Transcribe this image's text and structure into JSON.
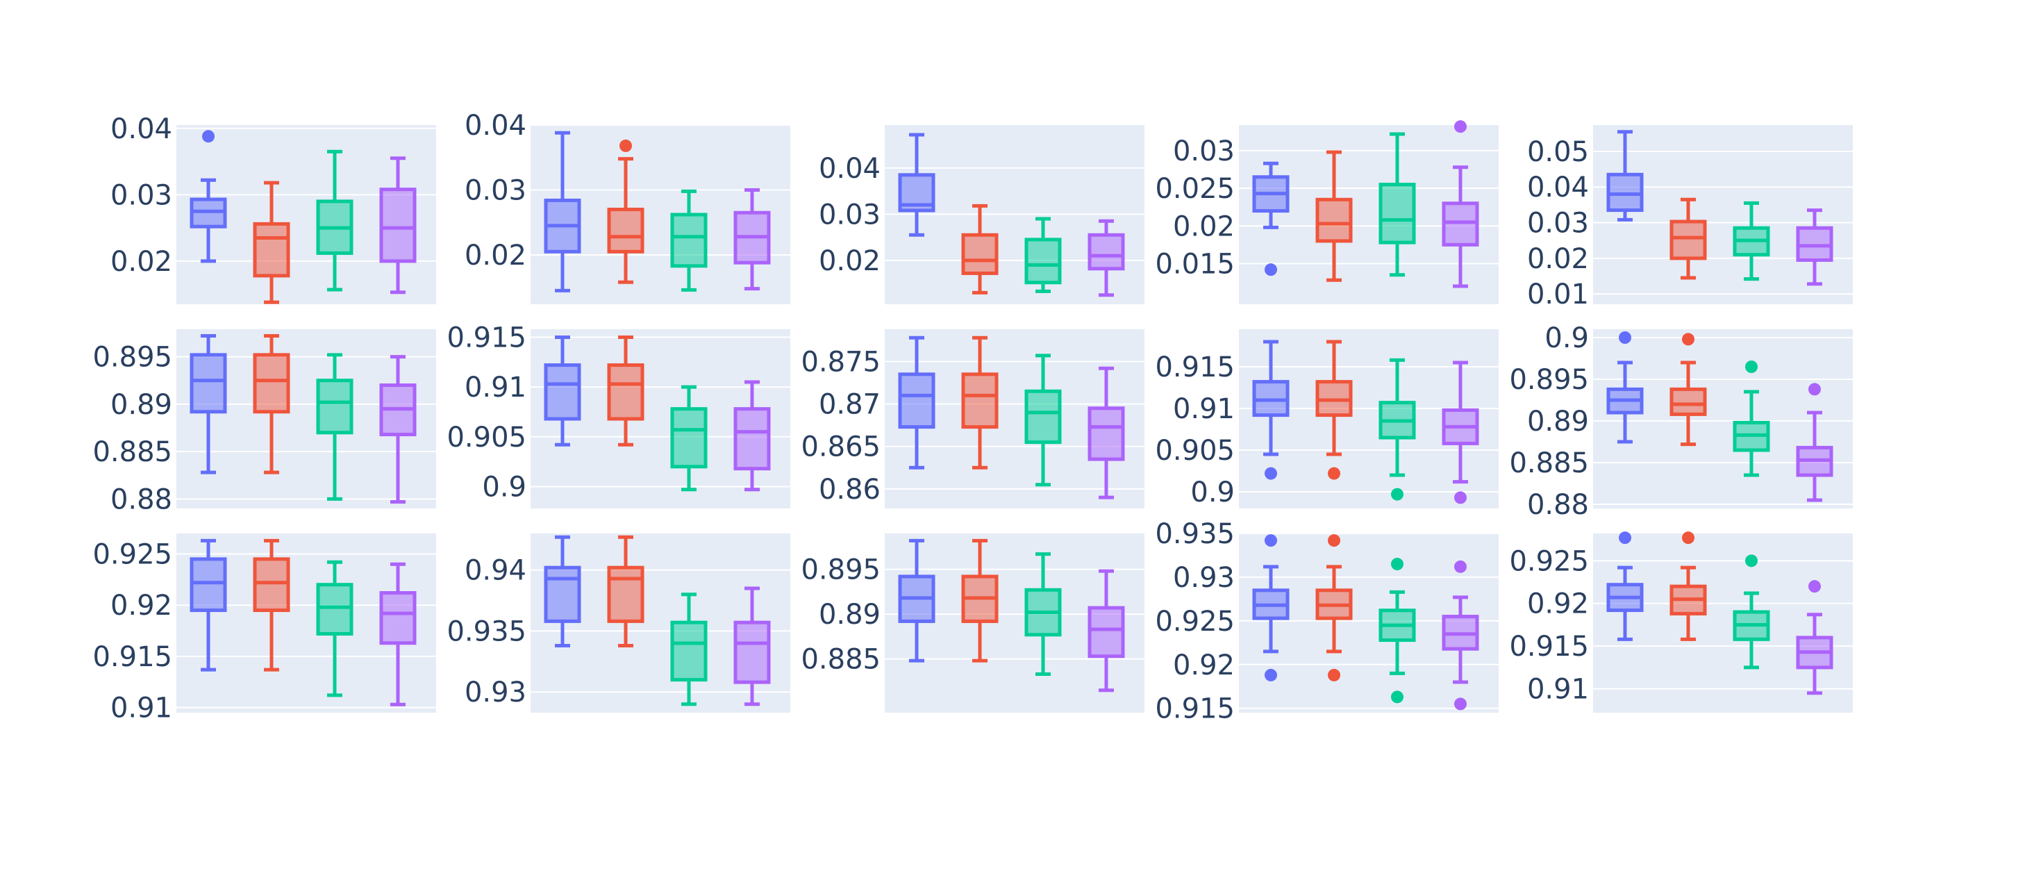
{
  "colors": {
    "plot_bg": "#e5ecf6",
    "grid": "#ffffff",
    "text": "#2a3f5f",
    "series": [
      "#636efa",
      "#ef553b",
      "#00cc96",
      "#ab63fa"
    ]
  },
  "chart_data": [
    {
      "type": "box",
      "row": 0,
      "col": 0,
      "ylim": [
        0.0135,
        0.0405
      ],
      "yticks": [
        {
          "v": 0.02,
          "label": "0.02"
        },
        {
          "v": 0.03,
          "label": "0.03"
        },
        {
          "v": 0.04,
          "label": "0.04"
        }
      ],
      "boxes": [
        {
          "q1": 0.0252,
          "median": 0.0275,
          "q3": 0.0293,
          "lowerfence": 0.02,
          "upperfence": 0.0322,
          "outliers": [
            0.0388
          ]
        },
        {
          "q1": 0.0178,
          "median": 0.0235,
          "q3": 0.0256,
          "lowerfence": 0.0138,
          "upperfence": 0.0318,
          "outliers": []
        },
        {
          "q1": 0.0212,
          "median": 0.025,
          "q3": 0.029,
          "lowerfence": 0.0157,
          "upperfence": 0.0365,
          "outliers": []
        },
        {
          "q1": 0.02,
          "median": 0.025,
          "q3": 0.0308,
          "lowerfence": 0.0153,
          "upperfence": 0.0355,
          "outliers": []
        }
      ]
    },
    {
      "type": "box",
      "row": 0,
      "col": 1,
      "ylim": [
        0.0124,
        0.04
      ],
      "yticks": [
        {
          "v": 0.02,
          "label": "0.02"
        },
        {
          "v": 0.03,
          "label": "0.03"
        },
        {
          "v": 0.04,
          "label": "0.04"
        }
      ],
      "boxes": [
        {
          "q1": 0.0205,
          "median": 0.0245,
          "q3": 0.0284,
          "lowerfence": 0.0145,
          "upperfence": 0.0388,
          "outliers": []
        },
        {
          "q1": 0.0205,
          "median": 0.0228,
          "q3": 0.027,
          "lowerfence": 0.0158,
          "upperfence": 0.0348,
          "outliers": [
            0.0368
          ]
        },
        {
          "q1": 0.0183,
          "median": 0.0228,
          "q3": 0.0262,
          "lowerfence": 0.0146,
          "upperfence": 0.0298,
          "outliers": []
        },
        {
          "q1": 0.0188,
          "median": 0.0228,
          "q3": 0.0265,
          "lowerfence": 0.0148,
          "upperfence": 0.03,
          "outliers": []
        }
      ]
    },
    {
      "type": "box",
      "row": 0,
      "col": 2,
      "ylim": [
        0.0105,
        0.0493
      ],
      "yticks": [
        {
          "v": 0.02,
          "label": "0.02"
        },
        {
          "v": 0.03,
          "label": "0.03"
        },
        {
          "v": 0.04,
          "label": "0.04"
        }
      ],
      "boxes": [
        {
          "q1": 0.0308,
          "median": 0.032,
          "q3": 0.0385,
          "lowerfence": 0.0255,
          "upperfence": 0.0472,
          "outliers": []
        },
        {
          "q1": 0.0172,
          "median": 0.02,
          "q3": 0.0255,
          "lowerfence": 0.013,
          "upperfence": 0.0318,
          "outliers": []
        },
        {
          "q1": 0.0152,
          "median": 0.019,
          "q3": 0.0245,
          "lowerfence": 0.0133,
          "upperfence": 0.029,
          "outliers": []
        },
        {
          "q1": 0.0182,
          "median": 0.021,
          "q3": 0.0255,
          "lowerfence": 0.0125,
          "upperfence": 0.0285,
          "outliers": []
        }
      ]
    },
    {
      "type": "box",
      "row": 0,
      "col": 3,
      "ylim": [
        0.0096,
        0.0334
      ],
      "yticks": [
        {
          "v": 0.015,
          "label": "0.015"
        },
        {
          "v": 0.02,
          "label": "0.02"
        },
        {
          "v": 0.025,
          "label": "0.025"
        },
        {
          "v": 0.03,
          "label": "0.03"
        }
      ],
      "boxes": [
        {
          "q1": 0.022,
          "median": 0.0243,
          "q3": 0.0265,
          "lowerfence": 0.0198,
          "upperfence": 0.0283,
          "outliers": [
            0.0142
          ]
        },
        {
          "q1": 0.018,
          "median": 0.0203,
          "q3": 0.0235,
          "lowerfence": 0.0128,
          "upperfence": 0.0298,
          "outliers": []
        },
        {
          "q1": 0.0178,
          "median": 0.0208,
          "q3": 0.0255,
          "lowerfence": 0.0135,
          "upperfence": 0.0322,
          "outliers": []
        },
        {
          "q1": 0.0175,
          "median": 0.0205,
          "q3": 0.023,
          "lowerfence": 0.012,
          "upperfence": 0.0278,
          "outliers": [
            0.0332
          ]
        }
      ]
    },
    {
      "type": "box",
      "row": 0,
      "col": 4,
      "ylim": [
        0.0071,
        0.0574
      ],
      "yticks": [
        {
          "v": 0.01,
          "label": "0.01"
        },
        {
          "v": 0.02,
          "label": "0.02"
        },
        {
          "v": 0.03,
          "label": "0.03"
        },
        {
          "v": 0.04,
          "label": "0.04"
        },
        {
          "v": 0.05,
          "label": "0.05"
        }
      ],
      "boxes": [
        {
          "q1": 0.0335,
          "median": 0.038,
          "q3": 0.0435,
          "lowerfence": 0.0308,
          "upperfence": 0.0555,
          "outliers": []
        },
        {
          "q1": 0.02,
          "median": 0.0258,
          "q3": 0.0303,
          "lowerfence": 0.0145,
          "upperfence": 0.0365,
          "outliers": []
        },
        {
          "q1": 0.021,
          "median": 0.025,
          "q3": 0.0285,
          "lowerfence": 0.0142,
          "upperfence": 0.0355,
          "outliers": []
        },
        {
          "q1": 0.0195,
          "median": 0.0235,
          "q3": 0.0285,
          "lowerfence": 0.0128,
          "upperfence": 0.0335,
          "outliers": []
        }
      ]
    },
    {
      "type": "box",
      "row": 1,
      "col": 0,
      "ylim": [
        0.879,
        0.8979
      ],
      "yticks": [
        {
          "v": 0.88,
          "label": "0.88"
        },
        {
          "v": 0.885,
          "label": "0.885"
        },
        {
          "v": 0.89,
          "label": "0.89"
        },
        {
          "v": 0.895,
          "label": "0.895"
        }
      ],
      "boxes": [
        {
          "q1": 0.8892,
          "median": 0.8925,
          "q3": 0.8952,
          "lowerfence": 0.8828,
          "upperfence": 0.8972,
          "outliers": []
        },
        {
          "q1": 0.8892,
          "median": 0.8925,
          "q3": 0.8952,
          "lowerfence": 0.8828,
          "upperfence": 0.8972,
          "outliers": []
        },
        {
          "q1": 0.887,
          "median": 0.8902,
          "q3": 0.8925,
          "lowerfence": 0.88,
          "upperfence": 0.8952,
          "outliers": []
        },
        {
          "q1": 0.8868,
          "median": 0.8895,
          "q3": 0.892,
          "lowerfence": 0.8797,
          "upperfence": 0.895,
          "outliers": []
        }
      ]
    },
    {
      "type": "box",
      "row": 1,
      "col": 1,
      "ylim": [
        0.8978,
        0.9158
      ],
      "yticks": [
        {
          "v": 0.9,
          "label": "0.9"
        },
        {
          "v": 0.905,
          "label": "0.905"
        },
        {
          "v": 0.91,
          "label": "0.91"
        },
        {
          "v": 0.915,
          "label": "0.915"
        }
      ],
      "boxes": [
        {
          "q1": 0.9068,
          "median": 0.9103,
          "q3": 0.9122,
          "lowerfence": 0.9042,
          "upperfence": 0.915,
          "outliers": []
        },
        {
          "q1": 0.9068,
          "median": 0.9103,
          "q3": 0.9122,
          "lowerfence": 0.9042,
          "upperfence": 0.915,
          "outliers": []
        },
        {
          "q1": 0.902,
          "median": 0.9057,
          "q3": 0.9078,
          "lowerfence": 0.8997,
          "upperfence": 0.91,
          "outliers": []
        },
        {
          "q1": 0.9018,
          "median": 0.9055,
          "q3": 0.9078,
          "lowerfence": 0.8997,
          "upperfence": 0.9105,
          "outliers": []
        }
      ]
    },
    {
      "type": "box",
      "row": 1,
      "col": 2,
      "ylim": [
        0.8577,
        0.8788
      ],
      "yticks": [
        {
          "v": 0.86,
          "label": "0.86"
        },
        {
          "v": 0.865,
          "label": "0.865"
        },
        {
          "v": 0.87,
          "label": "0.87"
        },
        {
          "v": 0.875,
          "label": "0.875"
        }
      ],
      "boxes": [
        {
          "q1": 0.8673,
          "median": 0.871,
          "q3": 0.8735,
          "lowerfence": 0.8625,
          "upperfence": 0.8778,
          "outliers": []
        },
        {
          "q1": 0.8673,
          "median": 0.871,
          "q3": 0.8735,
          "lowerfence": 0.8625,
          "upperfence": 0.8778,
          "outliers": []
        },
        {
          "q1": 0.8655,
          "median": 0.869,
          "q3": 0.8715,
          "lowerfence": 0.8605,
          "upperfence": 0.8757,
          "outliers": []
        },
        {
          "q1": 0.8635,
          "median": 0.8673,
          "q3": 0.8695,
          "lowerfence": 0.859,
          "upperfence": 0.8742,
          "outliers": []
        }
      ]
    },
    {
      "type": "box",
      "row": 1,
      "col": 3,
      "ylim": [
        0.898,
        0.9195
      ],
      "yticks": [
        {
          "v": 0.9,
          "label": "0.9"
        },
        {
          "v": 0.905,
          "label": "0.905"
        },
        {
          "v": 0.91,
          "label": "0.91"
        },
        {
          "v": 0.915,
          "label": "0.915"
        }
      ],
      "boxes": [
        {
          "q1": 0.9092,
          "median": 0.911,
          "q3": 0.9132,
          "lowerfence": 0.9045,
          "upperfence": 0.918,
          "outliers": [
            0.9022
          ]
        },
        {
          "q1": 0.9092,
          "median": 0.911,
          "q3": 0.9132,
          "lowerfence": 0.9045,
          "upperfence": 0.918,
          "outliers": [
            0.9022
          ]
        },
        {
          "q1": 0.9065,
          "median": 0.9085,
          "q3": 0.9107,
          "lowerfence": 0.902,
          "upperfence": 0.9158,
          "outliers": [
            0.8997
          ]
        },
        {
          "q1": 0.9058,
          "median": 0.9078,
          "q3": 0.9098,
          "lowerfence": 0.9012,
          "upperfence": 0.9155,
          "outliers": [
            0.8993
          ]
        }
      ]
    },
    {
      "type": "box",
      "row": 1,
      "col": 4,
      "ylim": [
        0.8795,
        0.901
      ],
      "yticks": [
        {
          "v": 0.88,
          "label": "0.88"
        },
        {
          "v": 0.885,
          "label": "0.885"
        },
        {
          "v": 0.89,
          "label": "0.89"
        },
        {
          "v": 0.895,
          "label": "0.895"
        },
        {
          "v": 0.9,
          "label": "0.9"
        }
      ],
      "boxes": [
        {
          "q1": 0.891,
          "median": 0.8925,
          "q3": 0.8938,
          "lowerfence": 0.8875,
          "upperfence": 0.897,
          "outliers": [
            0.9
          ]
        },
        {
          "q1": 0.8908,
          "median": 0.892,
          "q3": 0.8938,
          "lowerfence": 0.8872,
          "upperfence": 0.897,
          "outliers": [
            0.8998
          ]
        },
        {
          "q1": 0.8865,
          "median": 0.8883,
          "q3": 0.8898,
          "lowerfence": 0.8835,
          "upperfence": 0.8935,
          "outliers": [
            0.8965
          ]
        },
        {
          "q1": 0.8835,
          "median": 0.8853,
          "q3": 0.8868,
          "lowerfence": 0.8805,
          "upperfence": 0.891,
          "outliers": [
            0.8938
          ]
        }
      ]
    },
    {
      "type": "box",
      "row": 2,
      "col": 0,
      "ylim": [
        0.9095,
        0.927
      ],
      "yticks": [
        {
          "v": 0.91,
          "label": "0.91"
        },
        {
          "v": 0.915,
          "label": "0.915"
        },
        {
          "v": 0.92,
          "label": "0.92"
        },
        {
          "v": 0.925,
          "label": "0.925"
        }
      ],
      "boxes": [
        {
          "q1": 0.9195,
          "median": 0.9222,
          "q3": 0.9245,
          "lowerfence": 0.9137,
          "upperfence": 0.9263,
          "outliers": []
        },
        {
          "q1": 0.9195,
          "median": 0.9222,
          "q3": 0.9245,
          "lowerfence": 0.9137,
          "upperfence": 0.9263,
          "outliers": []
        },
        {
          "q1": 0.9172,
          "median": 0.9198,
          "q3": 0.922,
          "lowerfence": 0.9112,
          "upperfence": 0.9242,
          "outliers": []
        },
        {
          "q1": 0.9163,
          "median": 0.9192,
          "q3": 0.9212,
          "lowerfence": 0.9103,
          "upperfence": 0.924,
          "outliers": []
        }
      ]
    },
    {
      "type": "box",
      "row": 2,
      "col": 1,
      "ylim": [
        0.9283,
        0.943
      ],
      "yticks": [
        {
          "v": 0.93,
          "label": "0.93"
        },
        {
          "v": 0.935,
          "label": "0.935"
        },
        {
          "v": 0.94,
          "label": "0.94"
        }
      ],
      "boxes": [
        {
          "q1": 0.9358,
          "median": 0.9393,
          "q3": 0.9402,
          "lowerfence": 0.9338,
          "upperfence": 0.9427,
          "outliers": []
        },
        {
          "q1": 0.9358,
          "median": 0.9393,
          "q3": 0.9402,
          "lowerfence": 0.9338,
          "upperfence": 0.9427,
          "outliers": []
        },
        {
          "q1": 0.931,
          "median": 0.934,
          "q3": 0.9357,
          "lowerfence": 0.929,
          "upperfence": 0.938,
          "outliers": []
        },
        {
          "q1": 0.9308,
          "median": 0.934,
          "q3": 0.9357,
          "lowerfence": 0.929,
          "upperfence": 0.9385,
          "outliers": []
        }
      ]
    },
    {
      "type": "box",
      "row": 2,
      "col": 2,
      "ylim": [
        0.879,
        0.899
      ],
      "yticks": [
        {
          "v": 0.885,
          "label": "0.885"
        },
        {
          "v": 0.89,
          "label": "0.89"
        },
        {
          "v": 0.895,
          "label": "0.895"
        }
      ],
      "boxes": [
        {
          "q1": 0.8892,
          "median": 0.8918,
          "q3": 0.8942,
          "lowerfence": 0.8848,
          "upperfence": 0.8982,
          "outliers": []
        },
        {
          "q1": 0.8892,
          "median": 0.8918,
          "q3": 0.8942,
          "lowerfence": 0.8848,
          "upperfence": 0.8982,
          "outliers": []
        },
        {
          "q1": 0.8877,
          "median": 0.8902,
          "q3": 0.8927,
          "lowerfence": 0.8833,
          "upperfence": 0.8967,
          "outliers": []
        },
        {
          "q1": 0.8853,
          "median": 0.8883,
          "q3": 0.8907,
          "lowerfence": 0.8815,
          "upperfence": 0.8948,
          "outliers": []
        }
      ]
    },
    {
      "type": "box",
      "row": 2,
      "col": 3,
      "ylim": [
        0.9145,
        0.935
      ],
      "yticks": [
        {
          "v": 0.915,
          "label": "0.915"
        },
        {
          "v": 0.92,
          "label": "0.92"
        },
        {
          "v": 0.925,
          "label": "0.925"
        },
        {
          "v": 0.93,
          "label": "0.93"
        },
        {
          "v": 0.935,
          "label": "0.935"
        }
      ],
      "boxes": [
        {
          "q1": 0.9253,
          "median": 0.9268,
          "q3": 0.9285,
          "lowerfence": 0.9215,
          "upperfence": 0.9312,
          "outliers": [
            0.9342,
            0.9188
          ]
        },
        {
          "q1": 0.9253,
          "median": 0.9268,
          "q3": 0.9285,
          "lowerfence": 0.9215,
          "upperfence": 0.9312,
          "outliers": [
            0.9342,
            0.9188
          ]
        },
        {
          "q1": 0.9228,
          "median": 0.9245,
          "q3": 0.9262,
          "lowerfence": 0.919,
          "upperfence": 0.9283,
          "outliers": [
            0.9315,
            0.9163
          ]
        },
        {
          "q1": 0.9218,
          "median": 0.9235,
          "q3": 0.9255,
          "lowerfence": 0.918,
          "upperfence": 0.9277,
          "outliers": [
            0.9312,
            0.9155
          ]
        }
      ]
    },
    {
      "type": "box",
      "row": 2,
      "col": 4,
      "ylim": [
        0.9072,
        0.9282
      ],
      "yticks": [
        {
          "v": 0.91,
          "label": "0.91"
        },
        {
          "v": 0.915,
          "label": "0.915"
        },
        {
          "v": 0.92,
          "label": "0.92"
        },
        {
          "v": 0.925,
          "label": "0.925"
        }
      ],
      "boxes": [
        {
          "q1": 0.9192,
          "median": 0.9207,
          "q3": 0.9222,
          "lowerfence": 0.9158,
          "upperfence": 0.9242,
          "outliers": [
            0.9277
          ]
        },
        {
          "q1": 0.9188,
          "median": 0.9205,
          "q3": 0.922,
          "lowerfence": 0.9158,
          "upperfence": 0.9242,
          "outliers": [
            0.9277
          ]
        },
        {
          "q1": 0.9158,
          "median": 0.9175,
          "q3": 0.919,
          "lowerfence": 0.9125,
          "upperfence": 0.9212,
          "outliers": [
            0.925
          ]
        },
        {
          "q1": 0.9125,
          "median": 0.9143,
          "q3": 0.916,
          "lowerfence": 0.9095,
          "upperfence": 0.9187,
          "outliers": [
            0.922
          ]
        }
      ]
    }
  ]
}
